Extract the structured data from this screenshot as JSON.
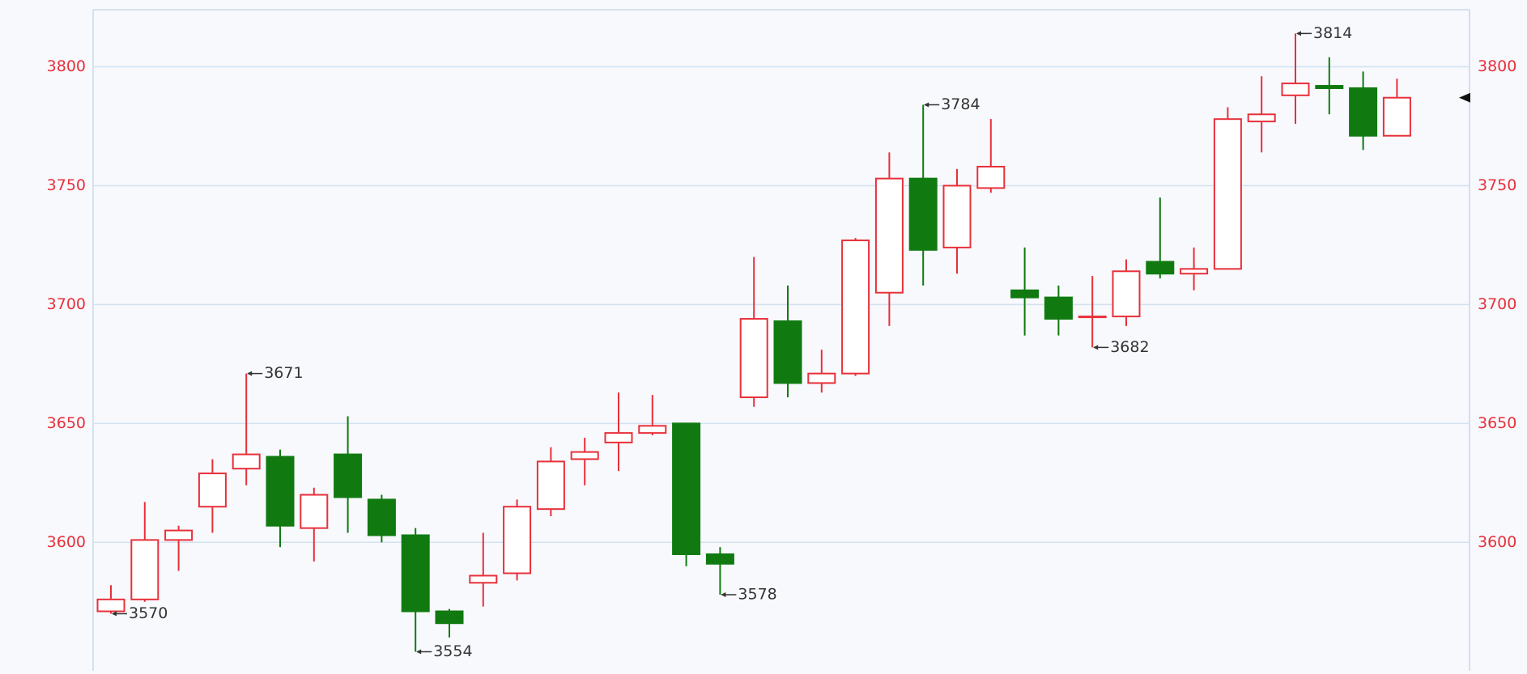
{
  "chart_data": {
    "type": "candlestick",
    "open": [
      3571,
      3576,
      3601,
      3615,
      3631,
      3636,
      3606,
      3637,
      3618,
      3603,
      3571,
      3583,
      3587,
      3614,
      3635,
      3642,
      3646,
      3650,
      3595,
      3661,
      3693,
      3667,
      3671,
      3705,
      3753,
      3724,
      3749,
      3706,
      3703,
      3695,
      3695,
      3718,
      3713,
      3715,
      3777,
      3788,
      3792,
      3791,
      3771
    ],
    "high": [
      3582,
      3617,
      3607,
      3635,
      3671,
      3639,
      3623,
      3653,
      3620,
      3606,
      3572,
      3604,
      3618,
      3640,
      3644,
      3663,
      3662,
      3650,
      3598,
      3720,
      3708,
      3681,
      3728,
      3764,
      3784,
      3757,
      3778,
      3724,
      3708,
      3712,
      3719,
      3745,
      3724,
      3783,
      3796,
      3814,
      3804,
      3798,
      3795
    ],
    "low": [
      3570,
      3575,
      3588,
      3604,
      3624,
      3598,
      3592,
      3604,
      3600,
      3554,
      3560,
      3573,
      3584,
      3611,
      3624,
      3630,
      3645,
      3590,
      3578,
      3657,
      3661,
      3663,
      3670,
      3691,
      3708,
      3713,
      3747,
      3687,
      3687,
      3682,
      3691,
      3711,
      3706,
      3715,
      3764,
      3776,
      3780,
      3765,
      3771
    ],
    "close": [
      3576,
      3601,
      3605,
      3629,
      3637,
      3607,
      3620,
      3619,
      3603,
      3571,
      3566,
      3586,
      3615,
      3634,
      3638,
      3646,
      3649,
      3595,
      3591,
      3694,
      3667,
      3671,
      3727,
      3753,
      3723,
      3750,
      3758,
      3703,
      3694,
      3695,
      3714,
      3713,
      3715,
      3778,
      3780,
      3793,
      3791,
      3771,
      3787
    ],
    "up_color": "#e8303a",
    "down_color": "#107a10",
    "ylim": [
      3546,
      3824
    ],
    "yticks": [
      3600,
      3650,
      3700,
      3750,
      3800
    ],
    "grid": true,
    "annotations": [
      {
        "value": 3570
      },
      {
        "value": 3671
      },
      {
        "value": 3554
      },
      {
        "value": 3578
      },
      {
        "value": 3784
      },
      {
        "value": 3682
      },
      {
        "value": 3814
      }
    ]
  }
}
